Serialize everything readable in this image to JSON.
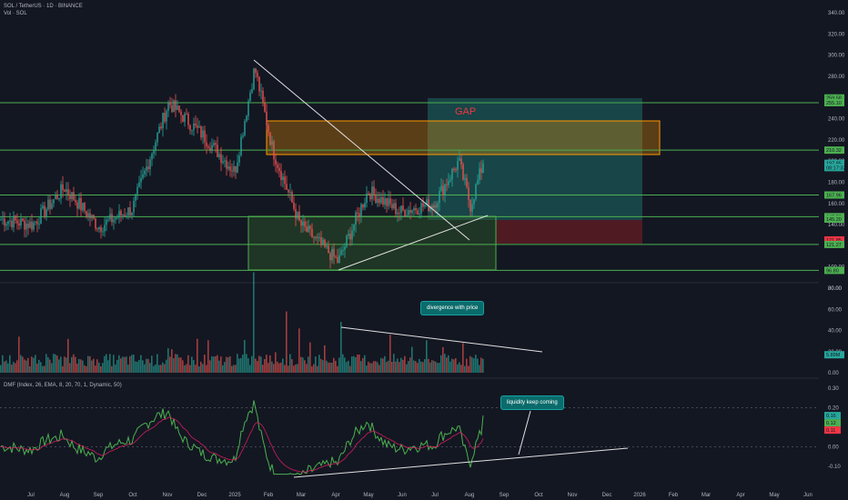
{
  "header": {
    "symbol_line": "SOL / TetherUS · 1D · BINANCE",
    "vol_line": "Vol · SOL",
    "dmf_line": "DMF (Index, 26, EMA, 8, 20, 70, 1, Dynamic, 50)"
  },
  "annotations": {
    "gap": "GAP",
    "divergence": "divergence with price",
    "liquidity": "liquidity keep coming"
  },
  "colors": {
    "background": "#131722",
    "up": "#26a69a",
    "down": "#ef5350",
    "level_line": "#4caf50",
    "gap_box": "#ff9800",
    "long_zone": "#1e6b66",
    "stop_zone": "#6b1c24",
    "dmf_line": "#4caf50",
    "trendline": "#e0e0e0"
  },
  "chart_data": [
    {
      "type": "candlestick",
      "title": "SOL / TetherUS · 1D · BINANCE",
      "y_ticks": [
        "340.00",
        "320.00",
        "300.00",
        "280.00",
        "260.00",
        "240.00",
        "220.00",
        "200.00",
        "180.00",
        "160.00",
        "140.00",
        "120.00",
        "100.00",
        "80.00"
      ],
      "x_ticks": [
        "Jul",
        "Aug",
        "Sep",
        "Oct",
        "Nov",
        "Dec",
        "2025",
        "Feb",
        "Mar",
        "Apr",
        "May",
        "Jun",
        "Jul",
        "Aug",
        "Sep",
        "Oct",
        "Nov",
        "Dec",
        "2026",
        "Feb",
        "Mar",
        "Apr",
        "May",
        "Jun"
      ],
      "price_labels": [
        {
          "text": "259.58",
          "kind": "level"
        },
        {
          "text": "255.10",
          "kind": "level"
        },
        {
          "text": "210.32",
          "kind": "level"
        },
        {
          "text": "197.85",
          "kind": "last"
        },
        {
          "text": "08:17:32",
          "kind": "last"
        },
        {
          "text": "167.96",
          "kind": "level"
        },
        {
          "text": "147.50",
          "kind": "level"
        },
        {
          "text": "145.20",
          "kind": "level"
        },
        {
          "text": "121.85",
          "kind": "stop"
        },
        {
          "text": "121.27",
          "kind": "level"
        },
        {
          "text": "96.80",
          "kind": "level"
        }
      ],
      "horizontal_levels": [
        255.1,
        210.32,
        167.96,
        147.5,
        121.27,
        96.8
      ],
      "key_path": [
        {
          "date": "Jun",
          "close": 145
        },
        {
          "date": "Jul",
          "close": 140
        },
        {
          "date": "Aug",
          "close": 175
        },
        {
          "date": "Sep",
          "close": 138
        },
        {
          "date": "Oct",
          "close": 155
        },
        {
          "date": "Nov",
          "close": 255
        },
        {
          "date": "Dec",
          "close": 225
        },
        {
          "date": "2025",
          "close": 190
        },
        {
          "date": "Jan 19",
          "close": 288
        },
        {
          "date": "Feb",
          "close": 210
        },
        {
          "date": "Mar",
          "close": 140
        },
        {
          "date": "Apr 7",
          "close": 105
        },
        {
          "date": "May",
          "close": 172
        },
        {
          "date": "Jun",
          "close": 152
        },
        {
          "date": "Jul",
          "close": 160
        },
        {
          "date": "Jul 22",
          "close": 200
        },
        {
          "date": "Aug 2",
          "close": 158
        },
        {
          "date": "Aug 13",
          "close": 197.85
        }
      ]
    },
    {
      "type": "bar",
      "title": "Vol · SOL",
      "y_ticks": [
        "80.00",
        "60.00",
        "40.00",
        "20.00",
        "0.00"
      ],
      "last_value": "5.89M",
      "unit": "M"
    },
    {
      "type": "line",
      "title": "DMF (Index, 26, EMA, 8, 20, 70, 1, Dynamic, 50)",
      "y_ticks": [
        "0.30",
        "0.20",
        "0.10",
        "0.00",
        "-0.10"
      ],
      "last_values": [
        "0.16",
        "0.12",
        "0.11"
      ]
    }
  ]
}
